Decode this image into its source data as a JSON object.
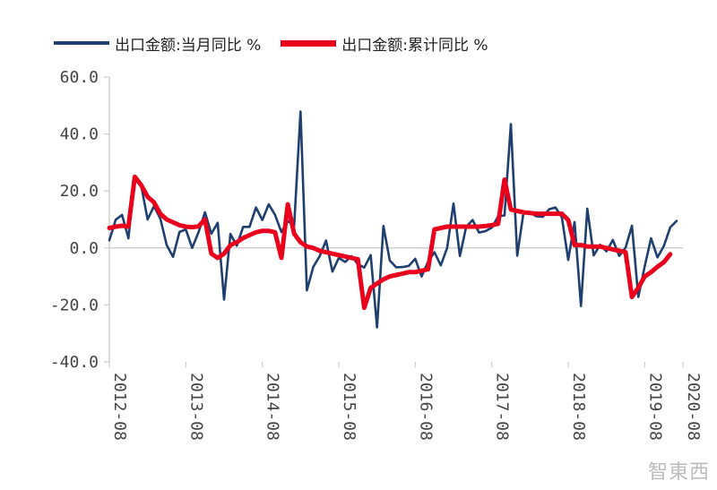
{
  "legend": {
    "series1": "出口金额:当月同比 %",
    "series2": "出口金额:累计同比 %"
  },
  "watermark": "智東西",
  "chart_data": {
    "type": "line",
    "ylim": [
      -40,
      60
    ],
    "yticks": [
      "60.0",
      "40.0",
      "20.0",
      "0.0",
      "-20.0",
      "-40.0"
    ],
    "ytick_values": [
      60,
      40,
      20,
      0,
      -20,
      -40
    ],
    "xtick_labels": [
      "2012-08",
      "2013-08",
      "2014-08",
      "2015-08",
      "2016-08",
      "2017-08",
      "2018-08",
      "2019-08",
      "2020-08"
    ],
    "grid": false,
    "legend_position": "top",
    "series": [
      {
        "name": "出口金额:当月同比 %",
        "color": "#1f3f6e",
        "values": [
          2.7,
          9.9,
          11.6,
          3.4,
          25,
          21.8,
          10,
          14.7,
          10.3,
          1,
          -3.1,
          5.6,
          6.5,
          0,
          5.6,
          12.5,
          5,
          8.8,
          -18.1,
          4.9,
          0.8,
          7.4,
          7.4,
          14.2,
          9.8,
          15.3,
          11.6,
          5.6,
          9.5,
          7.8,
          47.9,
          -14.9,
          -6.6,
          -2.9,
          2.6,
          -8.3,
          -3.5,
          -4.9,
          -2.9,
          -5.7,
          -6.9,
          -2.5,
          -27.9,
          7.7,
          -4.4,
          -6.8,
          -6.7,
          -6.3,
          -3.8,
          -10,
          -4.8,
          -1.5,
          -6.1,
          0,
          15.6,
          -2.8,
          7.5,
          9.8,
          5.4,
          5.9,
          7.1,
          11.1,
          11.4,
          43.5,
          -2.7,
          12.6,
          12.4,
          11.1,
          10.9,
          13.6,
          14.2,
          10.8,
          -4.2,
          9.1,
          -20.4,
          13.8,
          -2.6,
          1.1,
          -1.2,
          2.8,
          -2.8,
          0.1,
          7.8,
          -17.2,
          -6.5,
          3.4,
          -3.3,
          0.7,
          7.2,
          9.5
        ],
        "x": [
          0,
          1,
          2,
          3,
          4,
          5,
          6,
          7,
          8,
          9,
          10,
          11,
          12,
          13,
          14,
          15,
          16,
          17,
          18,
          19,
          20,
          21,
          22,
          23,
          24,
          25,
          26,
          27,
          28,
          29,
          30,
          31,
          32,
          33,
          34,
          35,
          36,
          37,
          38,
          39,
          40,
          41,
          42,
          43,
          44,
          45,
          46,
          47,
          48,
          49,
          50,
          51,
          52,
          53,
          54,
          55,
          56,
          57,
          58,
          59,
          60,
          61,
          62,
          63,
          64,
          65,
          66,
          67,
          68,
          69,
          70,
          71,
          72,
          73,
          74,
          75,
          76,
          77,
          78,
          79,
          80,
          81,
          82,
          83,
          84,
          85,
          86,
          87,
          88,
          89
        ]
      },
      {
        "name": "出口金额:累计同比 %",
        "color": "#e8001c",
        "values": [
          7,
          7.5,
          7.8,
          7.5,
          25,
          22,
          18,
          16,
          12,
          10,
          9,
          8,
          7.5,
          7.3,
          7.6,
          10,
          -2,
          -3.5,
          -2,
          1,
          2,
          3.5,
          4.5,
          5.5,
          6,
          6,
          5.5,
          -3.5,
          15.3,
          5,
          2,
          0.5,
          0,
          -1,
          -1.5,
          -2,
          -2.5,
          -3,
          -3.5,
          -4,
          -21,
          -14,
          -12.5,
          -11,
          -10,
          -9.5,
          -9,
          -8.5,
          -8.5,
          -8,
          -7.5,
          6.5,
          7,
          7.5,
          7.5,
          7.5,
          7.5,
          7.5,
          7.5,
          7.7,
          8,
          8.5,
          24,
          13.5,
          13,
          12.5,
          12.3,
          12,
          12,
          12,
          12,
          12,
          9.8,
          1,
          1,
          0.5,
          0.5,
          0.5,
          0,
          -0.5,
          -1,
          -1.5,
          -17.2,
          -14,
          -10,
          -8.5,
          -6.6,
          -5,
          -2.2
        ],
        "x": [
          0,
          1,
          2,
          3,
          4,
          5,
          6,
          7,
          8,
          9,
          10,
          11,
          12,
          13,
          14,
          15,
          16,
          17,
          18,
          19,
          20,
          21,
          22,
          23,
          24,
          25,
          26,
          27,
          28,
          29,
          30,
          31,
          32,
          33,
          34,
          35,
          36,
          37,
          38,
          39,
          40,
          41,
          42,
          43,
          44,
          45,
          46,
          47,
          48,
          49,
          50,
          51,
          52,
          53,
          54,
          55,
          56,
          57,
          58,
          59,
          60,
          61,
          62,
          63,
          64,
          65,
          66,
          67,
          68,
          69,
          70,
          71,
          72,
          73,
          74,
          75,
          76,
          77,
          78,
          79,
          80,
          81,
          82,
          83,
          84,
          85,
          86,
          87,
          88
        ]
      }
    ]
  }
}
